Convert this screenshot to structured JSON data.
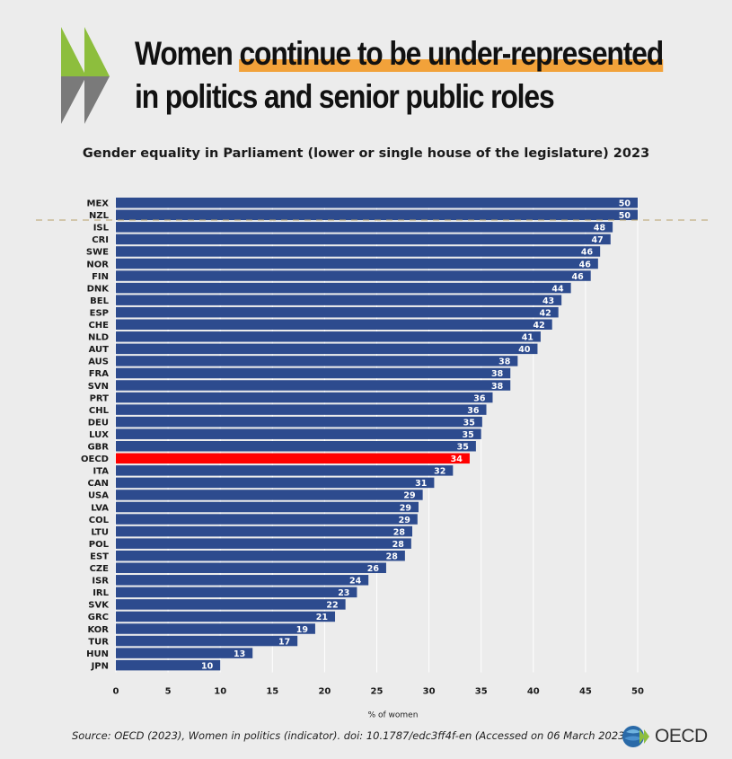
{
  "header": {
    "title_line1_a": "Women ",
    "title_line1_b": "continue to be under-represented",
    "title_line2": "in politics and senior public roles"
  },
  "colors": {
    "bar": "#2d4b8e",
    "highlight_bar": "#ff0000",
    "accent": "#f2a23a",
    "logo_green": "#8dbe3d",
    "logo_grey": "#7a7a7a",
    "reference_line": "#b8a06a"
  },
  "chart_data": {
    "type": "bar",
    "orientation": "horizontal",
    "title": "Gender equality in Parliament (lower or single house of the legislature) 2023",
    "xlabel": "% of women",
    "ylabel": "",
    "xlim": [
      0,
      50
    ],
    "xticks": [
      0,
      5,
      10,
      15,
      20,
      25,
      30,
      35,
      40,
      45,
      50
    ],
    "grid": true,
    "highlight": "OECD",
    "categories": [
      "MEX",
      "NZL",
      "ISL",
      "CRI",
      "SWE",
      "NOR",
      "FIN",
      "DNK",
      "BEL",
      "ESP",
      "CHE",
      "NLD",
      "AUT",
      "AUS",
      "FRA",
      "SVN",
      "PRT",
      "CHL",
      "DEU",
      "LUX",
      "GBR",
      "OECD",
      "ITA",
      "CAN",
      "USA",
      "LVA",
      "COL",
      "LTU",
      "POL",
      "EST",
      "CZE",
      "ISR",
      "IRL",
      "SVK",
      "GRC",
      "KOR",
      "TUR",
      "HUN",
      "JPN"
    ],
    "values": [
      50.0,
      50.0,
      47.6,
      47.4,
      46.4,
      46.2,
      45.5,
      43.6,
      42.7,
      42.4,
      41.8,
      40.7,
      40.4,
      38.5,
      37.8,
      37.8,
      36.1,
      35.5,
      35.1,
      35.0,
      34.5,
      33.9,
      32.3,
      30.5,
      29.4,
      29.0,
      28.9,
      28.4,
      28.3,
      27.7,
      25.9,
      24.2,
      23.1,
      22.0,
      21.0,
      19.1,
      17.4,
      13.1,
      10.0
    ],
    "labels": [
      "50",
      "50",
      "48",
      "47",
      "46",
      "46",
      "46",
      "44",
      "43",
      "42",
      "42",
      "41",
      "40",
      "38",
      "38",
      "38",
      "36",
      "36",
      "35",
      "35",
      "35",
      "34",
      "32",
      "31",
      "29",
      "29",
      "29",
      "28",
      "28",
      "28",
      "26",
      "24",
      "23",
      "22",
      "21",
      "19",
      "17",
      "13",
      "10"
    ]
  },
  "footer": {
    "source": "Source:  OECD (2023), Women in politics (indicator). doi: 10.1787/edc3ff4f-en (Accessed on 06 March 2023)",
    "logo_text": "OECD"
  }
}
